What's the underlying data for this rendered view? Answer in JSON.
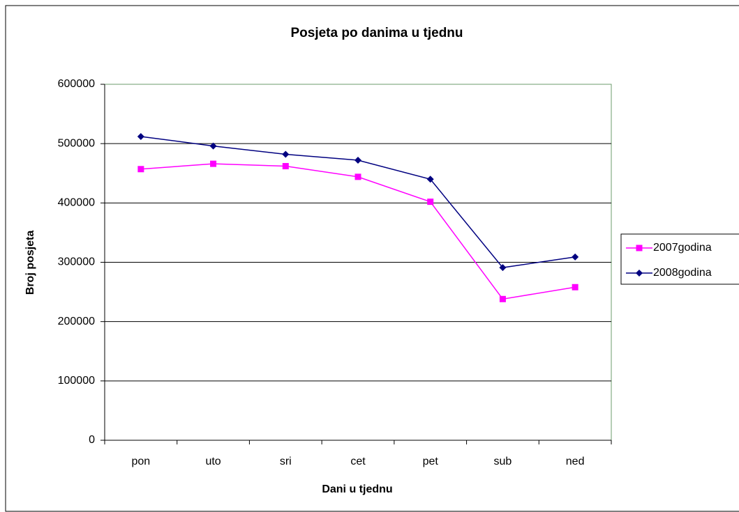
{
  "chart_data": {
    "type": "line",
    "title": "Posjeta po danima u tjednu",
    "x_label": "Dani u tjednu",
    "y_label": "Broj posjeta",
    "categories": [
      "pon",
      "uto",
      "sri",
      "cet",
      "pet",
      "sub",
      "ned"
    ],
    "series": [
      {
        "name": "2007godina",
        "color": "#ff00ff",
        "marker": "square",
        "values": [
          457000,
          466000,
          462000,
          444000,
          402000,
          238000,
          258000
        ]
      },
      {
        "name": "2008godina",
        "color": "#000080",
        "marker": "diamond",
        "values": [
          512000,
          496000,
          482000,
          472000,
          440000,
          291000,
          309000
        ]
      }
    ],
    "ylim": [
      0,
      600000
    ],
    "yticks": [
      0,
      100000,
      200000,
      300000,
      400000,
      500000,
      600000
    ],
    "grid": true,
    "legend": "right"
  }
}
